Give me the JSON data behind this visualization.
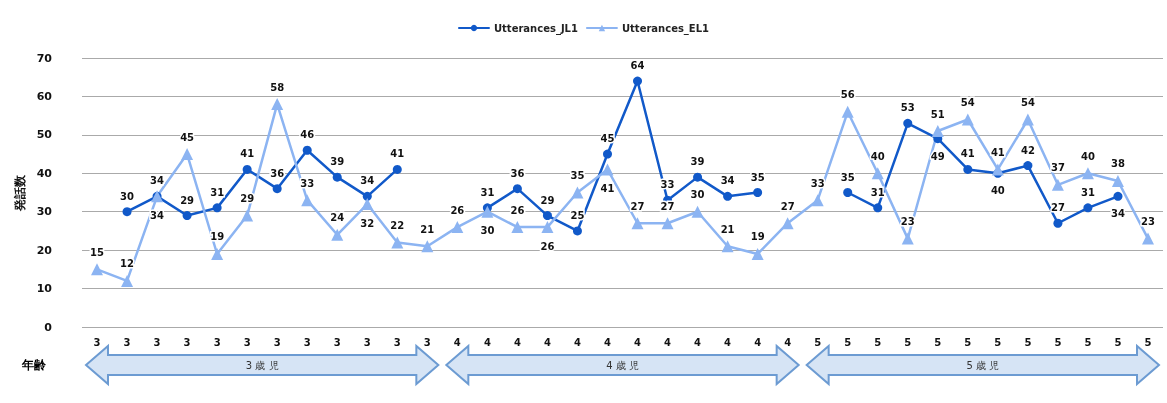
{
  "chart_data": {
    "type": "line",
    "ylabel": "発話数",
    "categories": [
      "3",
      "3",
      "3",
      "3",
      "3",
      "3",
      "3",
      "3",
      "3",
      "3",
      "3",
      "3",
      "4",
      "4",
      "4",
      "4",
      "4",
      "4",
      "4",
      "4",
      "4",
      "4",
      "4",
      "4",
      "5",
      "5",
      "5",
      "5",
      "5",
      "5",
      "5",
      "5",
      "5",
      "5",
      "5",
      "5"
    ],
    "series": [
      {
        "name": "Utterances_JL1",
        "color": "#1159c9",
        "marker": "circle",
        "values": [
          null,
          30,
          34,
          29,
          31,
          41,
          36,
          46,
          39,
          34,
          41,
          null,
          null,
          31,
          36,
          29,
          25,
          45,
          64,
          33,
          39,
          34,
          35,
          null,
          null,
          35,
          31,
          53,
          49,
          41,
          40,
          42,
          27,
          31,
          34,
          null
        ]
      },
      {
        "name": "Utterances_EL1",
        "color": "#8cb4f2",
        "marker": "triangle",
        "values": [
          15,
          12,
          34,
          45,
          19,
          29,
          58,
          33,
          24,
          32,
          22,
          21,
          26,
          30,
          26,
          26,
          35,
          41,
          27,
          27,
          30,
          21,
          19,
          27,
          33,
          56,
          40,
          23,
          51,
          54,
          41,
          54,
          37,
          40,
          38,
          23
        ]
      }
    ],
    "ylim": [
      0,
      70
    ],
    "yticks": [
      0,
      10,
      20,
      30,
      40,
      50,
      60,
      70
    ],
    "grid": "y",
    "legend": "top",
    "line_style": "solid",
    "data_labels": true,
    "annotations": [
      "年齢",
      "3 歳 児",
      "4 歳 児",
      "5 歳 児"
    ]
  }
}
